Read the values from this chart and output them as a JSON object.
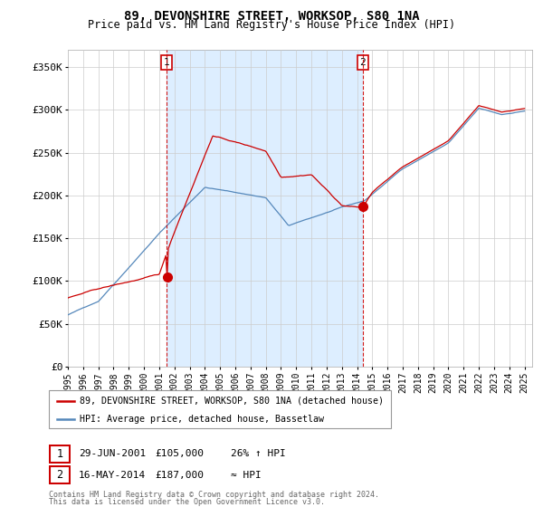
{
  "title": "89, DEVONSHIRE STREET, WORKSOP, S80 1NA",
  "subtitle": "Price paid vs. HM Land Registry's House Price Index (HPI)",
  "legend_line1": "89, DEVONSHIRE STREET, WORKSOP, S80 1NA (detached house)",
  "legend_line2": "HPI: Average price, detached house, Bassetlaw",
  "transaction1_date": "29-JUN-2001",
  "transaction1_price": "£105,000",
  "transaction1_hpi": "26% ↑ HPI",
  "transaction2_date": "16-MAY-2014",
  "transaction2_price": "£187,000",
  "transaction2_hpi": "≈ HPI",
  "footer": "Contains HM Land Registry data © Crown copyright and database right 2024.\nThis data is licensed under the Open Government Licence v3.0.",
  "red_color": "#cc0000",
  "blue_color": "#5588bb",
  "shade_color": "#ddeeff",
  "grid_color": "#cccccc",
  "background_color": "#ffffff",
  "ylim": [
    0,
    370000
  ],
  "yticks": [
    0,
    50000,
    100000,
    150000,
    200000,
    250000,
    300000,
    350000
  ],
  "ytick_labels": [
    "£0",
    "£50K",
    "£100K",
    "£150K",
    "£200K",
    "£250K",
    "£300K",
    "£350K"
  ],
  "t1_year": 2001.5,
  "t2_year": 2014.37,
  "t1_price": 105000,
  "t2_price": 187000,
  "xmin": 1995,
  "xmax": 2025.5
}
